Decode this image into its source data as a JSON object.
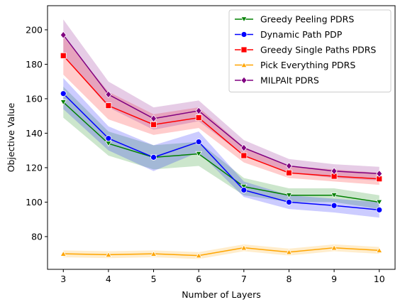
{
  "chart_data": {
    "type": "line",
    "title": "",
    "xlabel": "Number of Layers",
    "ylabel": "Objective Value",
    "x": [
      3,
      4,
      5,
      6,
      7,
      8,
      9,
      10
    ],
    "xlim": [
      2.65,
      10.35
    ],
    "ylim": [
      61,
      214
    ],
    "xticks": [
      3,
      4,
      5,
      6,
      7,
      8,
      9,
      10
    ],
    "yticks": [
      80,
      100,
      120,
      140,
      160,
      180,
      200
    ],
    "grid": false,
    "legend_position": "top-right",
    "series": [
      {
        "name": "Greedy Peeling PDRS",
        "color": "#008000",
        "marker": "triangle-down",
        "values": [
          158,
          134,
          126,
          128,
          109,
          104,
          104,
          100
        ],
        "lower": [
          149,
          127,
          119,
          121,
          104,
          100,
          100,
          96
        ],
        "upper": [
          167,
          141,
          133,
          135,
          114,
          108,
          108,
          104
        ]
      },
      {
        "name": "Dynamic Path PDP",
        "color": "#0000ff",
        "marker": "circle",
        "values": [
          163,
          137,
          126,
          135,
          107,
          100,
          98,
          95.5
        ],
        "lower": [
          154,
          130,
          118,
          129,
          103,
          96,
          94,
          91
        ],
        "upper": [
          172,
          144,
          133,
          141,
          112,
          104,
          102,
          100
        ]
      },
      {
        "name": "Greedy Single Paths PDRS",
        "color": "#ff0000",
        "marker": "square",
        "values": [
          185,
          156,
          145,
          149,
          127,
          117,
          115,
          113.5
        ],
        "lower": [
          174,
          148,
          139,
          143,
          123,
          114,
          112,
          110
        ],
        "upper": [
          196,
          164,
          151,
          155,
          132,
          121,
          119,
          117
        ]
      },
      {
        "name": "Pick Everything PDRS",
        "color": "#ffa500",
        "marker": "triangle-up",
        "values": [
          70,
          69.5,
          70,
          69,
          73.5,
          71,
          73.5,
          72
        ],
        "lower": [
          68,
          67.5,
          68,
          67,
          71.5,
          69,
          71.5,
          70
        ],
        "upper": [
          72,
          71.5,
          72,
          71,
          75.5,
          73,
          75.5,
          74
        ]
      },
      {
        "name": "MILPAlt PDRS",
        "color": "#800080",
        "marker": "diamond",
        "values": [
          197,
          162.5,
          148.5,
          153,
          131.5,
          121,
          118,
          116.5
        ],
        "lower": [
          185,
          155,
          142,
          147,
          127,
          117,
          114,
          112.5
        ],
        "upper": [
          206,
          170,
          155,
          159,
          136,
          125,
          122,
          120.5
        ]
      }
    ]
  }
}
